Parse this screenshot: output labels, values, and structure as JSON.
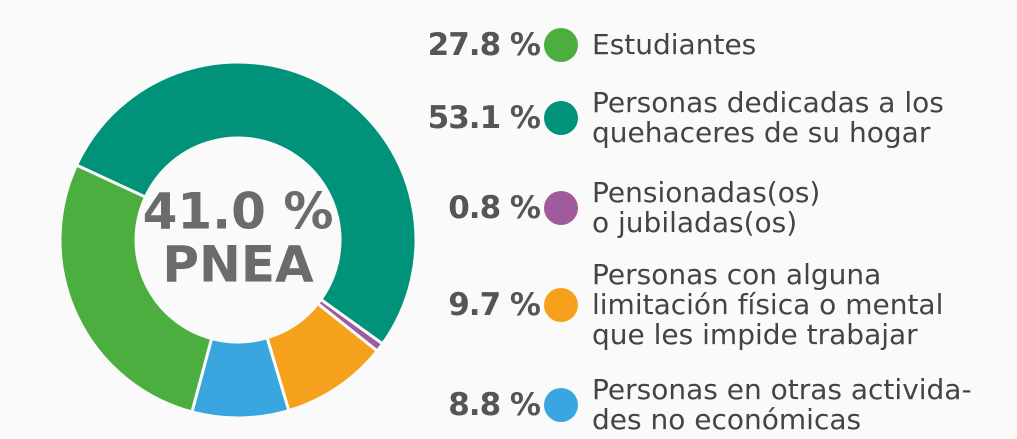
{
  "chart_data": {
    "type": "donut",
    "center_text": [
      "41.0 %",
      "PNEA"
    ],
    "categories": [
      "Estudiantes",
      "Personas dedicadas a los\nquehaceres de su hogar",
      "Pensionadas(os)\no jubiladas(os)",
      "Personas con alguna\nlimitación física o mental\nque les impide trabajar",
      "Personas en otras activida-\ndes no económicas"
    ],
    "values": [
      27.8,
      53.1,
      0.8,
      9.7,
      8.8
    ],
    "value_labels": [
      "27.8 %",
      "53.1 %",
      "0.8 %",
      "9.7 %",
      "8.8 %"
    ],
    "colors": [
      "#4bae3f",
      "#009379",
      "#a05a9e",
      "#f6a11c",
      "#3aa6e0"
    ]
  }
}
